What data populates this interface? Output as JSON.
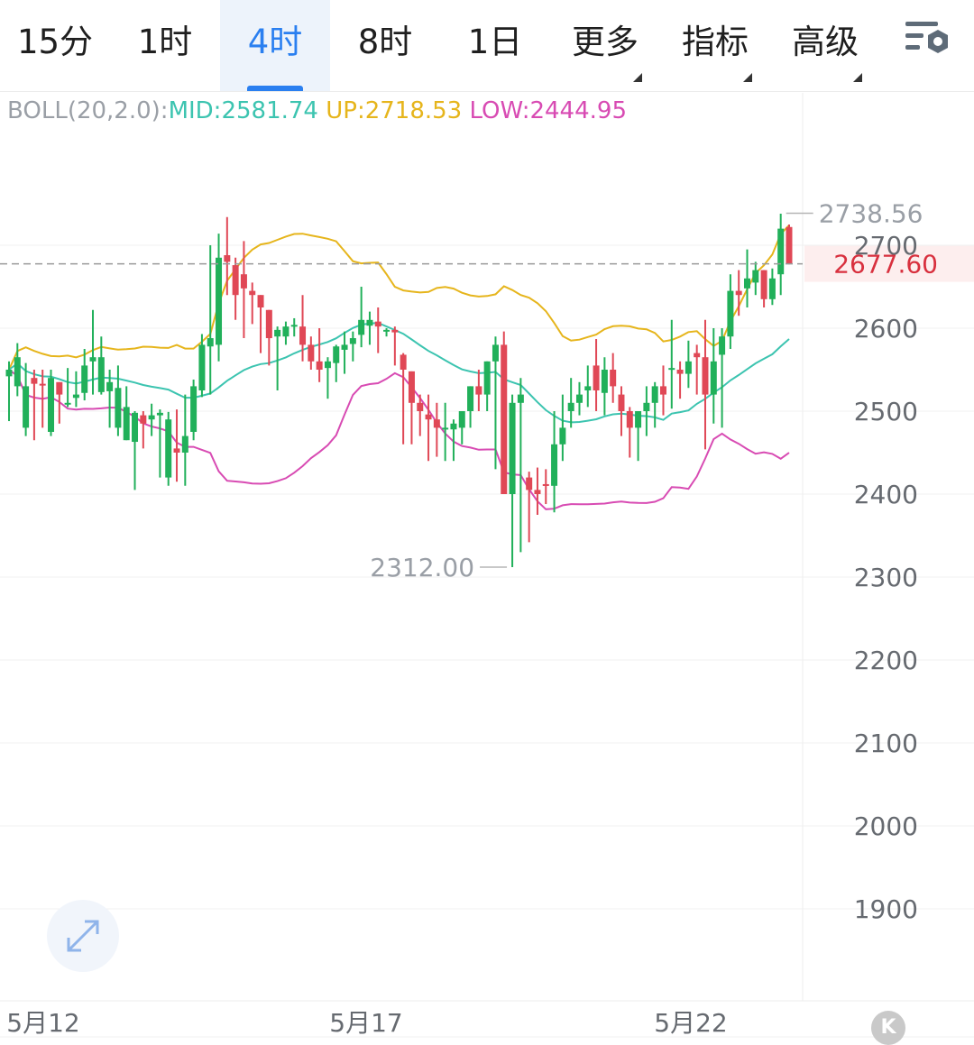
{
  "tabs": [
    {
      "label": "15分",
      "active": false,
      "dropdown": false
    },
    {
      "label": "1时",
      "active": false,
      "dropdown": false
    },
    {
      "label": "4时",
      "active": true,
      "dropdown": false
    },
    {
      "label": "8时",
      "active": false,
      "dropdown": false
    },
    {
      "label": "1日",
      "active": false,
      "dropdown": false
    },
    {
      "label": "更多",
      "active": false,
      "dropdown": true
    },
    {
      "label": "指标",
      "active": false,
      "dropdown": true
    },
    {
      "label": "高级",
      "active": false,
      "dropdown": true
    }
  ],
  "toolbar": {
    "settings_icon": "chart-settings-icon"
  },
  "indicator": {
    "label": "BOLL(20,2.0):",
    "mid": "MID:2581.74",
    "up": "UP:2718.53",
    "low": "LOW:2444.95"
  },
  "colors": {
    "up_candle": "#e04856",
    "down_candle": "#21b05a",
    "mid": "#3cc4b0",
    "upper": "#e6b51c",
    "lower": "#d84bb3",
    "accent": "#2a7ff0",
    "price_tag": "#d8303e"
  },
  "price": {
    "current": "2677.60",
    "high": "2738.56",
    "low": "2312.00"
  },
  "controls": {
    "expand_icon": "expand-arrows-icon",
    "k_label": "K"
  },
  "chart_data": {
    "type": "candlestick",
    "y_ticks": [
      1900,
      2000,
      2100,
      2200,
      2300,
      2400,
      2500,
      2600,
      2700
    ],
    "x_labels": [
      "5月12",
      "5月17",
      "5月22"
    ],
    "ylim": [
      1790,
      2900
    ],
    "last_price": 2677.6,
    "max_marker": 2738.56,
    "min_marker": 2312.0,
    "candles": [
      [
        2542,
        2560,
        2550,
        2488
      ],
      [
        2530,
        2582,
        2565,
        2518
      ],
      [
        2480,
        2558,
        2530,
        2470
      ],
      [
        2540,
        2550,
        2533,
        2465
      ],
      [
        2533,
        2550,
        2532,
        2480
      ],
      [
        2475,
        2550,
        2540,
        2470
      ],
      [
        2535,
        2535,
        2520,
        2485
      ],
      [
        2510,
        2552,
        2510,
        2505
      ],
      [
        2516,
        2548,
        2520,
        2505
      ],
      [
        2522,
        2575,
        2555,
        2513
      ],
      [
        2560,
        2622,
        2565,
        2520
      ],
      [
        2523,
        2590,
        2565,
        2520
      ],
      [
        2524,
        2550,
        2535,
        2480
      ],
      [
        2480,
        2555,
        2528,
        2470
      ],
      [
        2465,
        2530,
        2505,
        2465
      ],
      [
        2463,
        2500,
        2498,
        2405
      ],
      [
        2495,
        2500,
        2485,
        2455
      ],
      [
        2490,
        2509,
        2495,
        2470
      ],
      [
        2495,
        2502,
        2498,
        2420
      ],
      [
        2420,
        2499,
        2490,
        2410
      ],
      [
        2455,
        2502,
        2450,
        2415
      ],
      [
        2450,
        2520,
        2470,
        2410
      ],
      [
        2475,
        2538,
        2530,
        2465
      ],
      [
        2525,
        2593,
        2580,
        2517
      ],
      [
        2578,
        2700,
        2588,
        2520
      ],
      [
        2580,
        2714,
        2685,
        2560
      ],
      [
        2688,
        2734,
        2680,
        2640
      ],
      [
        2676,
        2685,
        2640,
        2610
      ],
      [
        2665,
        2705,
        2648,
        2588
      ],
      [
        2645,
        2655,
        2640,
        2605
      ],
      [
        2640,
        2615,
        2625,
        2570
      ],
      [
        2622,
        2622,
        2588,
        2555
      ],
      [
        2590,
        2602,
        2598,
        2525
      ],
      [
        2590,
        2608,
        2602,
        2580
      ],
      [
        2603,
        2612,
        2604,
        2590
      ],
      [
        2602,
        2640,
        2580,
        2560
      ],
      [
        2580,
        2590,
        2560,
        2550
      ],
      [
        2560,
        2600,
        2550,
        2535
      ],
      [
        2552,
        2565,
        2560,
        2515
      ],
      [
        2558,
        2580,
        2578,
        2535
      ],
      [
        2574,
        2596,
        2580,
        2545
      ],
      [
        2581,
        2596,
        2588,
        2560
      ],
      [
        2592,
        2650,
        2610,
        2577
      ],
      [
        2603,
        2620,
        2610,
        2580
      ],
      [
        2608,
        2625,
        2602,
        2570
      ],
      [
        2598,
        2600,
        2598,
        2590
      ],
      [
        2598,
        2602,
        2595,
        2555
      ],
      [
        2568,
        2570,
        2550,
        2460
      ],
      [
        2548,
        2530,
        2510,
        2460
      ],
      [
        2510,
        2520,
        2500,
        2470
      ],
      [
        2496,
        2520,
        2490,
        2440
      ],
      [
        2490,
        2510,
        2480,
        2445
      ],
      [
        2480,
        2510,
        2480,
        2440
      ],
      [
        2478,
        2490,
        2485,
        2440
      ],
      [
        2480,
        2500,
        2500,
        2460
      ],
      [
        2500,
        2520,
        2530,
        2480
      ],
      [
        2530,
        2550,
        2520,
        2500
      ],
      [
        2520,
        2560,
        2560,
        2500
      ],
      [
        2560,
        2590,
        2580,
        2430
      ],
      [
        2580,
        2596,
        2400,
        2404
      ],
      [
        2400,
        2520,
        2510,
        2312
      ],
      [
        2510,
        2540,
        2520,
        2330
      ],
      [
        2420,
        2427,
        2405,
        2342
      ],
      [
        2405,
        2432,
        2400,
        2375
      ],
      [
        2412,
        2430,
        2410,
        2388
      ],
      [
        2410,
        2500,
        2460,
        2378
      ],
      [
        2460,
        2520,
        2480,
        2440
      ],
      [
        2500,
        2540,
        2510,
        2480
      ],
      [
        2510,
        2535,
        2520,
        2495
      ],
      [
        2525,
        2555,
        2530,
        2505
      ],
      [
        2555,
        2587,
        2525,
        2500
      ],
      [
        2522,
        2565,
        2550,
        2495
      ],
      [
        2550,
        2570,
        2530,
        2510
      ],
      [
        2520,
        2530,
        2500,
        2470
      ],
      [
        2500,
        2505,
        2480,
        2444
      ],
      [
        2480,
        2500,
        2500,
        2440
      ],
      [
        2500,
        2530,
        2510,
        2470
      ],
      [
        2510,
        2535,
        2530,
        2480
      ],
      [
        2530,
        2555,
        2520,
        2495
      ],
      [
        2550,
        2610,
        2552,
        2503
      ],
      [
        2550,
        2560,
        2545,
        2515
      ],
      [
        2545,
        2585,
        2560,
        2528
      ],
      [
        2570,
        2580,
        2565,
        2520
      ],
      [
        2565,
        2610,
        2520,
        2454
      ],
      [
        2520,
        2600,
        2560,
        2485
      ],
      [
        2568,
        2600,
        2590,
        2480
      ],
      [
        2590,
        2665,
        2645,
        2575
      ],
      [
        2645,
        2670,
        2640,
        2615
      ],
      [
        2648,
        2695,
        2660,
        2625
      ],
      [
        2655,
        2680,
        2670,
        2640
      ],
      [
        2670,
        2670,
        2635,
        2625
      ],
      [
        2635,
        2672,
        2660,
        2628
      ],
      [
        2665,
        2738,
        2720,
        2640
      ],
      [
        2722,
        2725,
        2677.6,
        2677
      ]
    ]
  }
}
